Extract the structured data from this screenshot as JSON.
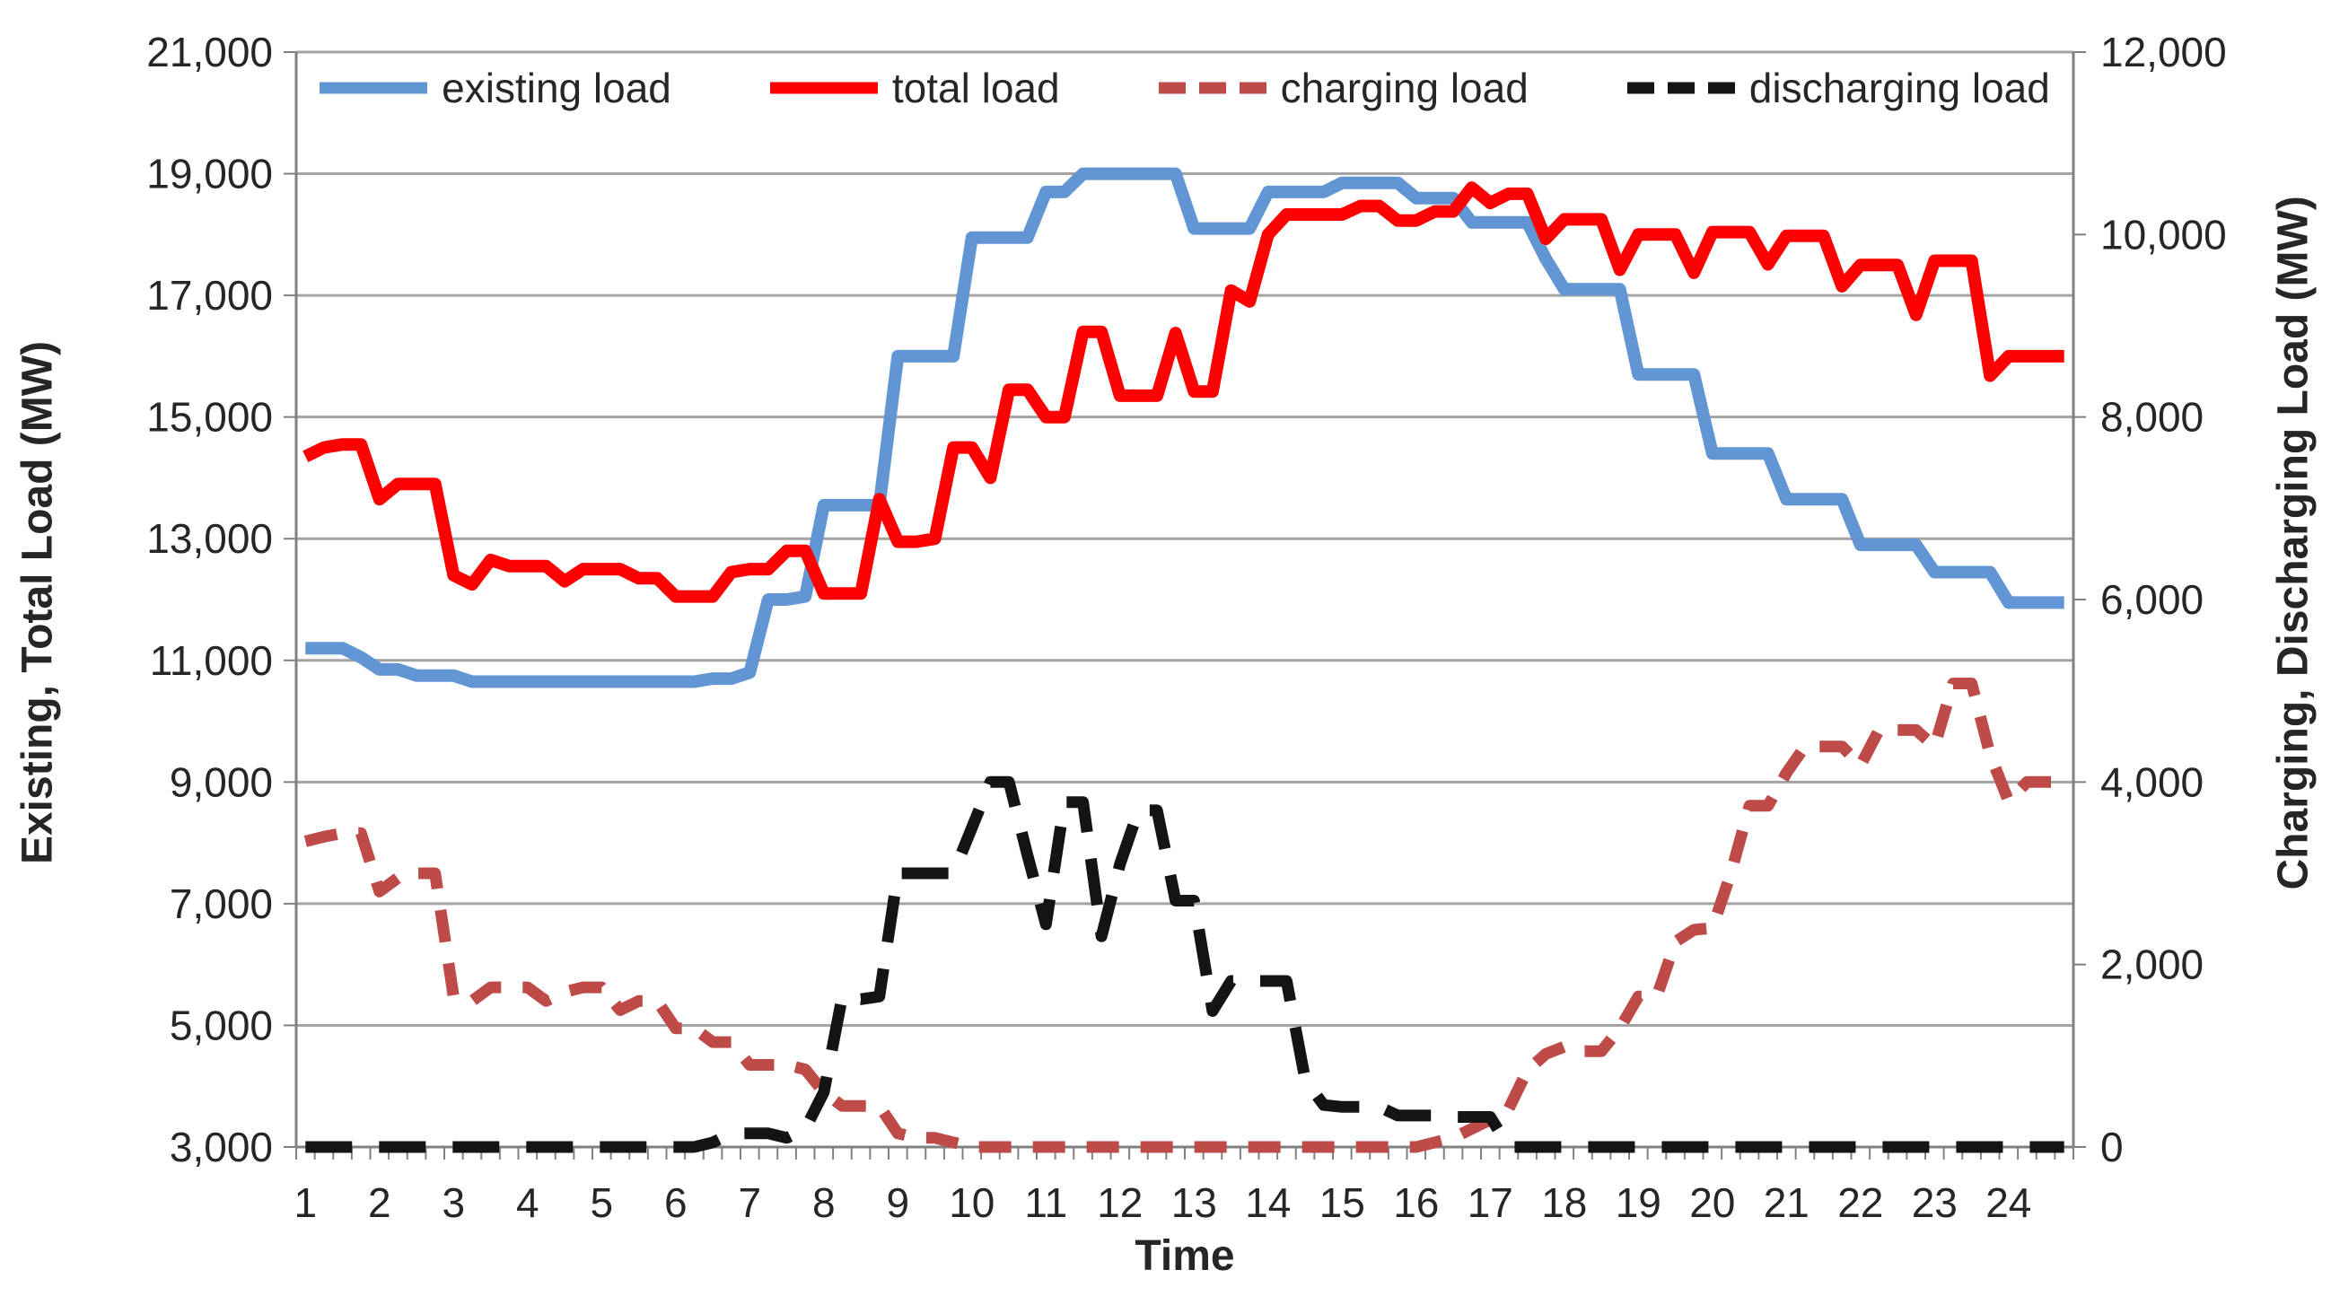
{
  "chart": {
    "legend": {
      "items": [
        {
          "label": "existing load",
          "color": "#6295D3",
          "dash": "solid"
        },
        {
          "label": "total load",
          "color": "#FE0000",
          "dash": "solid"
        },
        {
          "label": "charging load",
          "color": "#BE4B48",
          "dash": "dashed"
        },
        {
          "label": "discharging load",
          "color": "#141414",
          "dash": "dashed"
        }
      ]
    },
    "axes": {
      "y_left": {
        "title": "Existing, Total Load (MW)",
        "tick_labels": [
          "21,000",
          "19,000",
          "17,000",
          "15,000",
          "13,000",
          "11,000",
          "9,000",
          "7,000",
          "5,000",
          "3,000"
        ]
      },
      "y_right": {
        "title": "Charging, Discharging Load (MW)",
        "tick_labels": [
          "12,000",
          "10,000",
          "8,000",
          "6,000",
          "4,000",
          "2,000",
          "0"
        ]
      },
      "x": {
        "title": "Time",
        "tick_labels": [
          "1",
          "2",
          "3",
          "4",
          "5",
          "6",
          "7",
          "8",
          "9",
          "10",
          "11",
          "12",
          "13",
          "14",
          "15",
          "16",
          "17",
          "18",
          "19",
          "20",
          "21",
          "22",
          "23",
          "24"
        ]
      }
    }
  },
  "chart_data": {
    "type": "line",
    "title": "",
    "xlabel": "Time",
    "x_unit": "hours (15-minute intervals)",
    "x_start": 1,
    "x_step": 0.25,
    "n_points": 96,
    "grid": "horizontal",
    "legend_position": "top",
    "y_left": {
      "label": "Existing, Total Load (MW)",
      "min": 3000,
      "max": 21000,
      "gridline_step": 2000
    },
    "y_right": {
      "label": "Charging, Discharging Load (MW)",
      "min": 0,
      "max": 12000,
      "label_step": 2000
    },
    "series": [
      {
        "name": "existing load",
        "axis": "left",
        "color": "#6295D3",
        "style": "solid",
        "width": 14,
        "values": [
          11200,
          11200,
          11200,
          11050,
          10850,
          10850,
          10750,
          10750,
          10750,
          10650,
          10650,
          10650,
          10650,
          10650,
          10650,
          10650,
          10650,
          10650,
          10650,
          10650,
          10650,
          10650,
          10700,
          10700,
          10800,
          12000,
          12000,
          12050,
          13550,
          13550,
          13550,
          13550,
          16000,
          16000,
          16000,
          16000,
          17950,
          17950,
          17950,
          17950,
          18700,
          18700,
          19000,
          19000,
          19000,
          19000,
          19000,
          19000,
          18100,
          18100,
          18100,
          18100,
          18700,
          18700,
          18700,
          18700,
          18850,
          18850,
          18850,
          18850,
          18600,
          18600,
          18600,
          18200,
          18200,
          18200,
          18200,
          17600,
          17100,
          17100,
          17100,
          17100,
          15700,
          15700,
          15700,
          15700,
          14400,
          14400,
          14400,
          14400,
          13650,
          13650,
          13650,
          13650,
          12900,
          12900,
          12900,
          12900,
          12450,
          12450,
          12450,
          12450,
          11950,
          11950,
          11950,
          11950
        ]
      },
      {
        "name": "total load",
        "axis": "left",
        "color": "#FE0000",
        "style": "solid",
        "width": 14,
        "values": [
          14350,
          14500,
          14550,
          14550,
          13650,
          13900,
          13900,
          13900,
          12400,
          12250,
          12650,
          12550,
          12550,
          12550,
          12300,
          12500,
          12500,
          12500,
          12350,
          12350,
          12050,
          12050,
          12050,
          12450,
          12500,
          12500,
          12800,
          12800,
          12100,
          12100,
          12100,
          13650,
          12950,
          12950,
          13000,
          14500,
          14500,
          14000,
          15450,
          15450,
          15000,
          15000,
          16400,
          16400,
          15350,
          15350,
          15350,
          16380,
          15420,
          15420,
          17080,
          16900,
          18000,
          18330,
          18330,
          18330,
          18330,
          18470,
          18470,
          18230,
          18230,
          18380,
          18380,
          18770,
          18520,
          18670,
          18670,
          17930,
          18250,
          18250,
          18250,
          17420,
          18000,
          18000,
          18000,
          17370,
          18040,
          18040,
          18040,
          17510,
          17980,
          17980,
          17980,
          17150,
          17500,
          17500,
          17500,
          16680,
          17570,
          17570,
          17570,
          15680,
          16000,
          16000,
          16000,
          16000
        ]
      },
      {
        "name": "charging load",
        "axis": "right",
        "color": "#BE4B48",
        "style": "dashed",
        "width": 13,
        "values": [
          3350,
          3400,
          3440,
          3440,
          2800,
          2950,
          3000,
          3000,
          1650,
          1600,
          1750,
          1750,
          1750,
          1600,
          1700,
          1750,
          1750,
          1500,
          1600,
          1600,
          1300,
          1300,
          1150,
          1150,
          900,
          900,
          900,
          850,
          600,
          450,
          450,
          450,
          150,
          100,
          100,
          50,
          0,
          0,
          0,
          0,
          0,
          0,
          0,
          0,
          0,
          0,
          0,
          0,
          0,
          0,
          0,
          0,
          0,
          0,
          0,
          0,
          0,
          0,
          0,
          0,
          0,
          50,
          100,
          200,
          300,
          420,
          840,
          1020,
          1100,
          1050,
          1050,
          1300,
          1650,
          1650,
          2250,
          2380,
          2400,
          3000,
          3740,
          3740,
          4100,
          4390,
          4390,
          4390,
          4180,
          4570,
          4570,
          4570,
          4390,
          5080,
          5080,
          4300,
          3790,
          4000,
          4000,
          4000
        ]
      },
      {
        "name": "discharging load",
        "axis": "right",
        "color": "#141414",
        "style": "dashed",
        "width": 13,
        "values": [
          0,
          0,
          0,
          0,
          0,
          0,
          0,
          0,
          0,
          0,
          0,
          0,
          0,
          0,
          0,
          0,
          0,
          0,
          0,
          0,
          0,
          0,
          50,
          150,
          150,
          150,
          100,
          200,
          600,
          1650,
          1620,
          1650,
          3000,
          3000,
          3000,
          3000,
          3500,
          4000,
          4000,
          3200,
          2440,
          3780,
          3780,
          2310,
          3100,
          3690,
          3690,
          2700,
          2700,
          1490,
          1820,
          1820,
          1820,
          1820,
          740,
          460,
          440,
          440,
          440,
          345,
          345,
          345,
          330,
          330,
          330,
          0,
          0,
          0,
          0,
          0,
          0,
          0,
          0,
          0,
          0,
          0,
          0,
          0,
          0,
          0,
          0,
          0,
          0,
          0,
          0,
          0,
          0,
          0,
          0,
          0,
          0,
          0,
          0,
          0,
          0,
          0
        ]
      }
    ]
  }
}
